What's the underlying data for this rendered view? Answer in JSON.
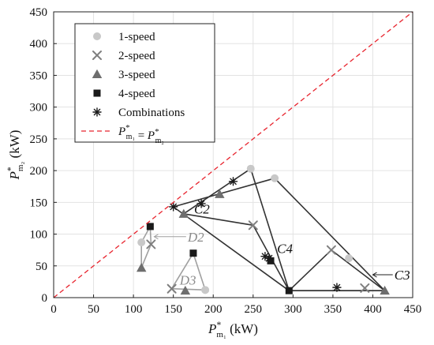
{
  "chart_data": {
    "type": "scatter",
    "xlim": [
      0,
      450
    ],
    "ylim": [
      0,
      450
    ],
    "x_ticks": [
      0,
      50,
      100,
      150,
      200,
      250,
      300,
      350,
      400,
      450
    ],
    "y_ticks": [
      0,
      50,
      100,
      150,
      200,
      250,
      300,
      350,
      400,
      450
    ],
    "xlabel": {
      "base": "P",
      "sup": "*",
      "sub": "m₁",
      "unit": " (kW)"
    },
    "ylabel": {
      "base": "P",
      "sup": "*",
      "sub": "m₂",
      "unit": " (kW)"
    },
    "grid": true,
    "legend_position": "top-left",
    "series": [
      {
        "name": "1-speed",
        "marker": "circle",
        "color": "#c8c8c8",
        "points": [
          [
            110,
            87
          ],
          [
            190,
            12
          ],
          [
            247,
            203
          ],
          [
            277,
            188
          ],
          [
            370,
            62
          ]
        ]
      },
      {
        "name": "2-speed",
        "marker": "x",
        "color": "#7f7f7f",
        "points": [
          [
            122,
            84
          ],
          [
            148,
            14
          ],
          [
            250,
            114
          ],
          [
            348,
            75
          ],
          [
            390,
            15
          ]
        ]
      },
      {
        "name": "3-speed",
        "marker": "triangle",
        "color": "#6e6e6e",
        "points": [
          [
            110,
            47
          ],
          [
            165,
            11
          ],
          [
            163,
            132
          ],
          [
            208,
            163
          ],
          [
            415,
            11
          ]
        ]
      },
      {
        "name": "4-speed",
        "marker": "square",
        "color": "#1a1a1a",
        "points": [
          [
            121,
            112
          ],
          [
            175,
            70
          ],
          [
            272,
            58
          ],
          [
            295,
            11
          ]
        ]
      },
      {
        "name": "Combinations",
        "marker": "asterisk",
        "color": "#1a1a1a",
        "points": [
          [
            150,
            143
          ],
          [
            185,
            148
          ],
          [
            225,
            183
          ],
          [
            265,
            65
          ],
          [
            270,
            62
          ],
          [
            355,
            16
          ]
        ]
      },
      {
        "name": "",
        "legend_math": {
          "lhs": "P",
          "lhs_sub": "m₁",
          "rhs": "P",
          "rhs_sub": "m₂"
        },
        "type": "line",
        "style": "dashed",
        "color": "#e8242e",
        "points": [
          [
            0,
            0
          ],
          [
            450,
            450
          ]
        ]
      }
    ],
    "regions": [
      {
        "label": "D2",
        "color": "#a0a0a0",
        "polygon": [
          [
            110,
            47
          ],
          [
            110,
            87
          ],
          [
            121,
            112
          ],
          [
            122,
            84
          ]
        ]
      },
      {
        "label": "D3",
        "color": "#a0a0a0",
        "polygon": [
          [
            148,
            14
          ],
          [
            175,
            70
          ],
          [
            190,
            12
          ]
        ]
      },
      {
        "label": "C2",
        "color": "#333333",
        "polygon": [
          [
            163,
            132
          ],
          [
            247,
            203
          ],
          [
            295,
            11
          ],
          [
            250,
            114
          ]
        ]
      },
      {
        "label": "C3",
        "color": "#333333",
        "polygon": [
          [
            295,
            11
          ],
          [
            348,
            75
          ],
          [
            415,
            11
          ]
        ]
      },
      {
        "label": "C4",
        "color": "#333333",
        "polygon": [
          [
            150,
            143
          ],
          [
            277,
            188
          ],
          [
            415,
            11
          ],
          [
            295,
            11
          ]
        ]
      }
    ],
    "region_labels": [
      {
        "text": "C2",
        "x": 176,
        "y": 140
      },
      {
        "text": "C4",
        "x": 280,
        "y": 78
      },
      {
        "text": "C3",
        "x": 427,
        "y": 36
      },
      {
        "text": "D2",
        "x": 168,
        "y": 96
      },
      {
        "text": "D3",
        "x": 158,
        "y": 28
      }
    ]
  }
}
